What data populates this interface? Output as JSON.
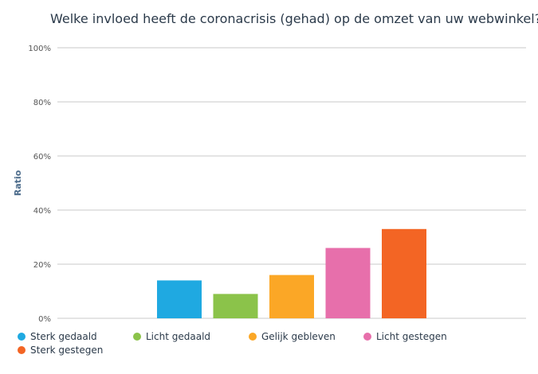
{
  "chart_data": {
    "type": "bar",
    "title": "Welke invloed heeft de coronacrisis (gehad) op de omzet van uw webwinkel?",
    "ylabel": "Ratio",
    "xlabel": "",
    "ylim": [
      0,
      100
    ],
    "yticks": [
      "0%",
      "20%",
      "40%",
      "60%",
      "80%",
      "100%"
    ],
    "yticks_values": [
      0,
      20,
      40,
      60,
      80,
      100
    ],
    "grid": true,
    "legend_position": "bottom",
    "series": [
      {
        "name": "Sterk gedaald",
        "value": 14,
        "color": "#1fa9e1"
      },
      {
        "name": "Licht gedaald",
        "value": 9,
        "color": "#8bc34a"
      },
      {
        "name": "Gelijk gebleven",
        "value": 16,
        "color": "#fba726"
      },
      {
        "name": "Licht gestegen",
        "value": 26,
        "color": "#e76fab"
      },
      {
        "name": "Sterk gestegen",
        "value": 33,
        "color": "#f36524"
      }
    ]
  }
}
